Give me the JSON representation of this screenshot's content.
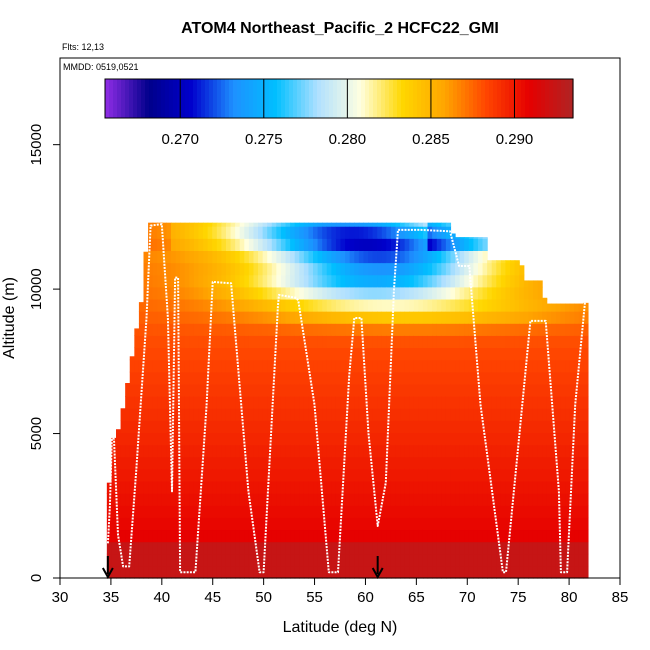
{
  "chart_data": {
    "type": "heatmap",
    "title": "ATOM4 Northeast_Pacific_2 HCFC22_GMI",
    "flights_label": "Flts: 12,13",
    "dates_label": "MMDD: 0519,0521",
    "xlabel": "Latitude (deg N)",
    "ylabel": "Altitude (m)",
    "xlim": [
      30,
      85
    ],
    "ylim": [
      0,
      18000
    ],
    "x_ticks": [
      "30",
      "35",
      "40",
      "45",
      "50",
      "55",
      "60",
      "65",
      "70",
      "75",
      "80",
      "85"
    ],
    "y_ticks": [
      "0",
      "5000",
      "10000",
      "15000"
    ],
    "colorbar": {
      "range": [
        0.2655,
        0.2935
      ],
      "ticks": [
        "0.270",
        "0.275",
        "0.280",
        "0.285",
        "0.290"
      ],
      "colors": [
        "#8a2be2",
        "#00008b",
        "#0000cd",
        "#1e90ff",
        "#00bfff",
        "#b0e0ff",
        "#ffffe0",
        "#ffd700",
        "#ffa500",
        "#ff4500",
        "#e60000",
        "#b22222"
      ]
    },
    "markers": [
      {
        "label": "start",
        "x": 34.7
      },
      {
        "label": "end",
        "x": 61.2
      }
    ],
    "flight_track": [
      [
        34.7,
        1200
      ],
      [
        34.9,
        2500
      ],
      [
        35.1,
        4900
      ],
      [
        35.3,
        4800
      ],
      [
        35.7,
        1500
      ],
      [
        36.2,
        400
      ],
      [
        36.8,
        400
      ],
      [
        37.5,
        3800
      ],
      [
        38.5,
        9000
      ],
      [
        38.9,
        12200
      ],
      [
        40.0,
        12250
      ],
      [
        40.6,
        9000
      ],
      [
        41.0,
        3000
      ],
      [
        41.3,
        10400
      ],
      [
        41.6,
        10400
      ],
      [
        41.8,
        200
      ],
      [
        42.8,
        200
      ],
      [
        43.3,
        200
      ],
      [
        44.4,
        6000
      ],
      [
        45.0,
        10250
      ],
      [
        46.8,
        10200
      ],
      [
        47.8,
        6000
      ],
      [
        48.5,
        3000
      ],
      [
        49.6,
        200
      ],
      [
        50.0,
        200
      ],
      [
        51.4,
        9400
      ],
      [
        51.5,
        9800
      ],
      [
        53.2,
        9700
      ],
      [
        53.4,
        9600
      ],
      [
        55.0,
        6000
      ],
      [
        56.4,
        200
      ],
      [
        57.3,
        200
      ],
      [
        58.4,
        7000
      ],
      [
        58.9,
        9000
      ],
      [
        59.6,
        9000
      ],
      [
        60.3,
        5000
      ],
      [
        61.2,
        1800
      ],
      [
        62.0,
        3300
      ],
      [
        62.8,
        10000
      ],
      [
        63.2,
        12050
      ],
      [
        65.5,
        12050
      ],
      [
        68.3,
        12000
      ],
      [
        69.2,
        10800
      ],
      [
        70.2,
        10800
      ],
      [
        71.3,
        6000
      ],
      [
        73.5,
        200
      ],
      [
        73.8,
        200
      ],
      [
        76.2,
        8900
      ],
      [
        77.7,
        8900
      ],
      [
        79.0,
        3000
      ],
      [
        79.2,
        200
      ],
      [
        79.8,
        200
      ],
      [
        80.6,
        6000
      ],
      [
        81.6,
        9700
      ],
      [
        81.9,
        9900
      ]
    ]
  }
}
